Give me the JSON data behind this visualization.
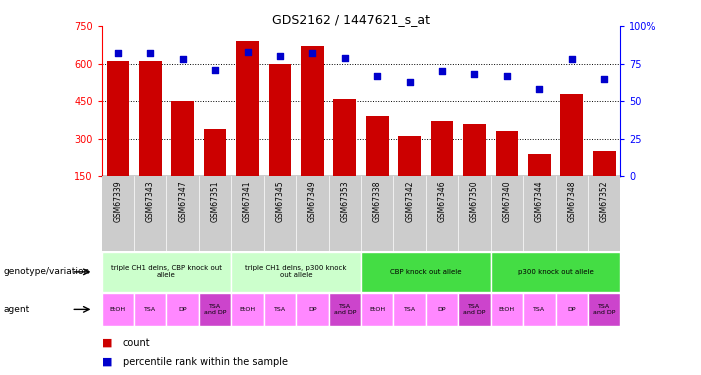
{
  "title": "GDS2162 / 1447621_s_at",
  "samples": [
    "GSM67339",
    "GSM67343",
    "GSM67347",
    "GSM67351",
    "GSM67341",
    "GSM67345",
    "GSM67349",
    "GSM67353",
    "GSM67338",
    "GSM67342",
    "GSM67346",
    "GSM67350",
    "GSM67340",
    "GSM67344",
    "GSM67348",
    "GSM67352"
  ],
  "counts": [
    610,
    610,
    450,
    340,
    690,
    600,
    670,
    460,
    390,
    310,
    370,
    360,
    330,
    240,
    480,
    250
  ],
  "percentiles": [
    82,
    82,
    78,
    71,
    83,
    80,
    82,
    79,
    67,
    63,
    70,
    68,
    67,
    58,
    78,
    65
  ],
  "bar_color": "#cc0000",
  "dot_color": "#0000cc",
  "ylim_left": [
    150,
    750
  ],
  "ylim_right": [
    0,
    100
  ],
  "yticks_left": [
    150,
    300,
    450,
    600,
    750
  ],
  "yticks_right": [
    0,
    25,
    50,
    75,
    100
  ],
  "grid_lines": [
    300,
    450,
    600
  ],
  "groups": [
    {
      "label": "triple CH1 delns, CBP knock out\nallele",
      "start": 0,
      "end": 3,
      "color": "#ccffcc"
    },
    {
      "label": "triple CH1 delns, p300 knock\nout allele",
      "start": 4,
      "end": 7,
      "color": "#ccffcc"
    },
    {
      "label": "CBP knock out allele",
      "start": 8,
      "end": 11,
      "color": "#44dd44"
    },
    {
      "label": "p300 knock out allele",
      "start": 12,
      "end": 15,
      "color": "#44dd44"
    }
  ],
  "agents": [
    "EtOH",
    "TSA",
    "DP",
    "TSA\nand DP",
    "EtOH",
    "TSA",
    "DP",
    "TSA\nand DP",
    "EtOH",
    "TSA",
    "DP",
    "TSA\nand DP",
    "EtOH",
    "TSA",
    "DP",
    "TSA\nand DP"
  ],
  "agent_colors": [
    "#ff88ff",
    "#ff88ff",
    "#ff88ff",
    "#cc44cc",
    "#ff88ff",
    "#ff88ff",
    "#ff88ff",
    "#cc44cc",
    "#ff88ff",
    "#ff88ff",
    "#ff88ff",
    "#cc44cc",
    "#ff88ff",
    "#ff88ff",
    "#ff88ff",
    "#cc44cc"
  ],
  "xlabel_row1": "genotype/variation",
  "xlabel_row2": "agent",
  "legend_count_color": "#cc0000",
  "legend_dot_color": "#0000cc",
  "bg_color": "#ffffff",
  "sample_bg_color": "#cccccc"
}
